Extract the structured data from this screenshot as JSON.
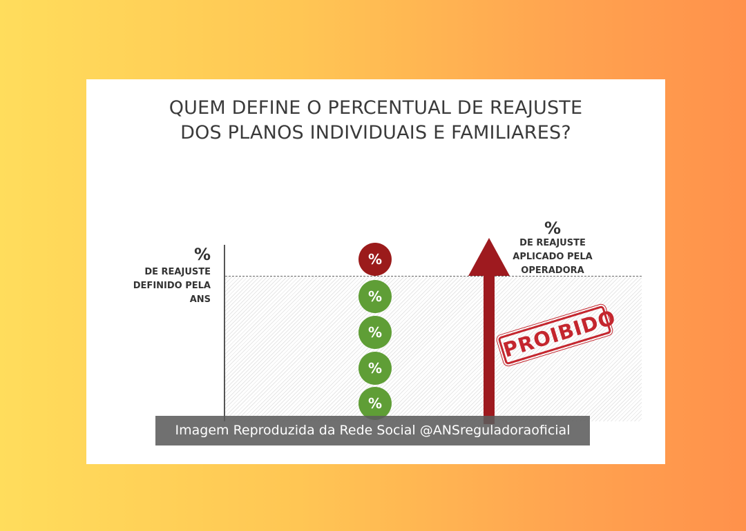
{
  "title": {
    "line1": "QUEM DEFINE O PERCENTUAL DE REAJUSTE",
    "line2": "DOS PLANOS INDIVIDUAIS E FAMILIARES?"
  },
  "ans_label": {
    "symbol": "%",
    "line1": "DE REAJUSTE",
    "line2": "DEFINIDO PELA",
    "line3": "ANS"
  },
  "operator_label": {
    "symbol": "%",
    "line1": "DE REAJUSTE",
    "line2": "APLICADO PELA",
    "line3": "OPERADORA"
  },
  "circles": [
    {
      "text": "%",
      "status": "over-limit",
      "color": "#9b1b1b"
    },
    {
      "text": "%",
      "status": "allowed",
      "color": "#5f9e36"
    },
    {
      "text": "%",
      "status": "allowed",
      "color": "#5f9e36"
    },
    {
      "text": "%",
      "status": "allowed",
      "color": "#5f9e36"
    },
    {
      "text": "%",
      "status": "allowed",
      "color": "#5f9e36"
    }
  ],
  "stamp": "PROIBIDO",
  "caption": "Imagem Reproduzida da Rede Social @ANSreguladoraoficial",
  "colors": {
    "arrow": "#9e1a1f",
    "stamp": "#c4262e",
    "green": "#5f9e36",
    "red": "#9b1b1b"
  }
}
